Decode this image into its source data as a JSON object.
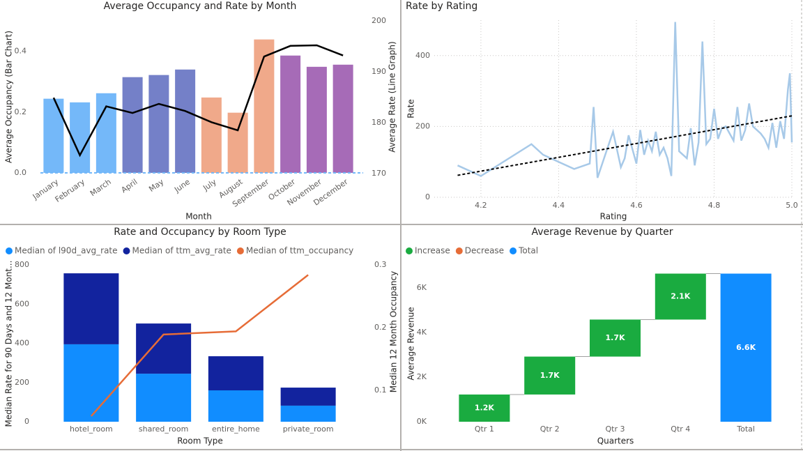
{
  "chart_data": [
    {
      "type": "bar_line",
      "title": "Average Occupancy and Rate by Month",
      "x_label": "Month",
      "y_label": "Average Occupancy (Bar Chart)",
      "y2_label": "Average Rate (Line Graph)",
      "categories": [
        "January",
        "February",
        "March",
        "April",
        "May",
        "June",
        "July",
        "August",
        "September",
        "October",
        "November",
        "December"
      ],
      "series": [
        {
          "values": [
            0.244,
            0.232,
            0.262,
            0.315,
            0.322,
            0.34,
            0.248,
            0.198,
            0.439,
            0.386,
            0.349,
            0.356
          ],
          "colors": [
            "#74b8f9",
            "#74b8f9",
            "#74b8f9",
            "#7480c8",
            "#7480c8",
            "#7480c8",
            "#f0a98a",
            "#f0a98a",
            "#f0a98a",
            "#a66bb7",
            "#a66bb7",
            "#a66bb7"
          ]
        },
        {
          "values": [
            184.9,
            173.6,
            183.2,
            181.9,
            183.7,
            182.3,
            180.1,
            178.5,
            193.0,
            195.1,
            195.2,
            193.2
          ],
          "color": "#000000",
          "axis": "y2"
        }
      ],
      "ylim": [
        0,
        0.5
      ],
      "yticks": [
        {
          "value": 0,
          "label": "0.0"
        },
        0.2,
        0.4
      ],
      "y2lim": [
        170,
        200
      ],
      "y2ticks": [
        170,
        180,
        190,
        200
      ]
    },
    {
      "type": "line",
      "title": "Rate by Rating",
      "x_label": "Rating",
      "y_label": "Rate",
      "x": [
        4.14,
        4.2,
        4.33,
        4.36,
        4.4,
        4.44,
        4.48,
        4.49,
        4.5,
        4.52,
        4.54,
        4.56,
        4.57,
        4.58,
        4.6,
        4.61,
        4.62,
        4.63,
        4.64,
        4.65,
        4.66,
        4.67,
        4.68,
        4.69,
        4.7,
        4.71,
        4.73,
        4.74,
        4.75,
        4.76,
        4.77,
        4.78,
        4.79,
        4.8,
        4.81,
        4.82,
        4.83,
        4.84,
        4.85,
        4.86,
        4.87,
        4.88,
        4.89,
        4.9,
        4.92,
        4.93,
        4.94,
        4.95,
        4.96,
        4.97,
        4.98,
        4.99,
        4.995,
        5.0
      ],
      "series": [
        {
          "color": "#a7c9e8",
          "values": [
            90,
            60,
            150,
            120,
            100,
            80,
            95,
            255,
            55,
            120,
            185,
            85,
            110,
            175,
            95,
            190,
            120,
            160,
            130,
            185,
            120,
            140,
            110,
            60,
            495,
            130,
            110,
            195,
            90,
            155,
            440,
            150,
            165,
            250,
            165,
            195,
            200,
            180,
            160,
            255,
            160,
            190,
            265,
            200,
            180,
            165,
            140,
            210,
            140,
            215,
            165,
            305,
            350,
            155
          ]
        }
      ],
      "trend_line": {
        "x": [
          4.14,
          5.0
        ],
        "values": [
          62,
          230
        ],
        "color": "#000000"
      },
      "xlim": [
        4.08,
        5.0
      ],
      "xticks": [
        4.2,
        4.4,
        4.6,
        4.8,
        {
          "value": 5,
          "label": "5.0"
        }
      ],
      "ylim": [
        0,
        500
      ],
      "yticks": [
        0,
        200,
        400
      ],
      "grid": true
    },
    {
      "type": "stacked_bar_line",
      "title": "Rate and Occupancy by Room Type",
      "x_label": "Room Type",
      "y_label": "Median Rate for 90 Days and 12 Mont...",
      "y2_label": "Median 12 Month Occupancy",
      "categories": [
        "hotel_room",
        "shared_room",
        "entire_home",
        "private_room"
      ],
      "series": [
        {
          "name": "Median of l90d_avg_rate",
          "color": "#118dff",
          "values": [
            395,
            245,
            160,
            82
          ]
        },
        {
          "name": "Median of ttm_avg_rate",
          "color": "#12239e",
          "values": [
            362,
            256,
            174,
            92
          ]
        },
        {
          "name": "Median of ttm_occupancy",
          "color": "#e66c37",
          "values": [
            0.059,
            0.189,
            0.194,
            0.284
          ],
          "axis": "y2"
        }
      ],
      "ylim": [
        0,
        800
      ],
      "yticks": [
        0,
        200,
        400,
        600,
        800
      ],
      "y2lim": [
        0.05,
        0.3
      ],
      "y2ticks": [
        0.1,
        0.2,
        0.3
      ]
    },
    {
      "type": "waterfall",
      "title": "Average Revenue by Quarter",
      "x_label": "Quarters",
      "y_label": "Average Revenue",
      "legend": [
        {
          "name": "Increase",
          "color": "#1aab40"
        },
        {
          "name": "Decrease",
          "color": "#e66c37"
        },
        {
          "name": "Total",
          "color": "#118dff"
        }
      ],
      "categories": [
        "Qtr 1",
        "Qtr 2",
        "Qtr 3",
        "Qtr 4",
        "Total"
      ],
      "values": [
        1220,
        1700,
        1660,
        2060,
        6640
      ],
      "value_labels": [
        "1.2K",
        "1.7K",
        "1.7K",
        "2.1K",
        "6.6K"
      ],
      "is_total": [
        false,
        false,
        false,
        false,
        true
      ],
      "ylim": [
        0,
        7000
      ],
      "yticks": [
        {
          "value": 0,
          "label": "0K"
        },
        {
          "value": 2000,
          "label": "2K"
        },
        {
          "value": 4000,
          "label": "4K"
        },
        {
          "value": 6000,
          "label": "6K"
        }
      ]
    }
  ]
}
